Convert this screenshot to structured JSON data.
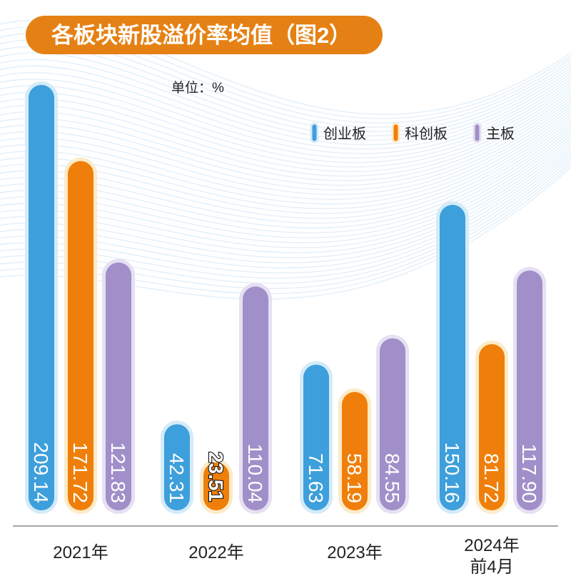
{
  "chart_data": {
    "type": "bar",
    "title": "各板块新股溢价率均值（图2）",
    "unit_label": "单位：%",
    "categories": [
      "2021年",
      "2022年",
      "2023年",
      "2024年\n前4月"
    ],
    "series": [
      {
        "name": "创业板",
        "color": "#3d9fdb",
        "halo": "#d4ebf8",
        "values": [
          209.14,
          42.31,
          71.63,
          150.16
        ]
      },
      {
        "name": "科创板",
        "color": "#ef7f0a",
        "halo": "#fcebc9",
        "values": [
          171.72,
          23.51,
          58.19,
          81.72
        ]
      },
      {
        "name": "主板",
        "color": "#a08fc9",
        "halo": "#e6e0f2",
        "values": [
          121.83,
          110.04,
          84.55,
          117.9
        ]
      }
    ],
    "value_labels": [
      [
        "209.14",
        "42.31",
        "71.63",
        "150.16"
      ],
      [
        "171.72",
        "23.51",
        "58.19",
        "81.72"
      ],
      [
        "121.83",
        "110.04",
        "84.55",
        "117.90"
      ]
    ],
    "ylim": [
      0,
      215
    ],
    "grid": false,
    "legend": "top-right",
    "title_color": "#e58114"
  }
}
